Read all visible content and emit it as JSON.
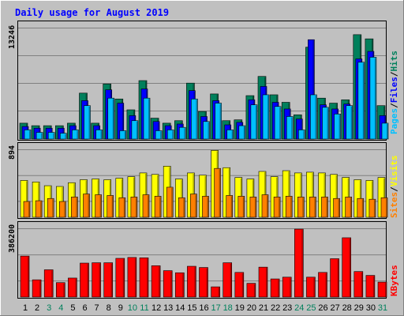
{
  "title": "Daily usage for August 2019",
  "colors": {
    "background": "#C0C0C0",
    "hits": "#00805C",
    "files": "#0000FF",
    "pages": "#00C0FF",
    "visits": "#FFFF00",
    "sites": "#FF8000",
    "kbytes": "#FF0000",
    "day_normal": "#000000",
    "day_weekend": "#00805C"
  },
  "side_labels": {
    "pages": "Pages",
    "files": "Files",
    "hits": "Hits",
    "sites": "Sites",
    "visits": "Visits",
    "kbytes": "KBytes",
    "separator": "/"
  },
  "chart_data": [
    {
      "type": "bar",
      "panel": "hits-files-pages",
      "max_label": "13246",
      "ylim": [
        0,
        13246
      ],
      "categories": [
        "1",
        "2",
        "3",
        "4",
        "5",
        "6",
        "7",
        "8",
        "9",
        "10",
        "11",
        "12",
        "13",
        "14",
        "15",
        "16",
        "17",
        "18",
        "19",
        "20",
        "21",
        "22",
        "23",
        "24",
        "25",
        "26",
        "27",
        "28",
        "29",
        "30",
        "31"
      ],
      "weekend_days": [
        "3",
        "4",
        "10",
        "11",
        "17",
        "18",
        "24",
        "25",
        "31"
      ],
      "series": [
        {
          "name": "Hits",
          "values": [
            1900,
            1600,
            1600,
            1600,
            1900,
            5500,
            1900,
            6600,
            4800,
            3500,
            7000,
            2500,
            1900,
            2200,
            6700,
            3300,
            5400,
            2200,
            2300,
            5200,
            7500,
            5300,
            4400,
            2900,
            11000,
            4900,
            4300,
            4700,
            12500,
            12000,
            4000
          ]
        },
        {
          "name": "Files",
          "values": [
            1500,
            1300,
            1300,
            1300,
            1600,
            4600,
            1600,
            5900,
            4300,
            2800,
            6000,
            2100,
            1600,
            1800,
            5800,
            2700,
            4600,
            1700,
            2000,
            4700,
            6300,
            4400,
            3600,
            2400,
            11900,
            4100,
            3600,
            4200,
            9600,
            10500,
            2800
          ]
        },
        {
          "name": "Pages",
          "values": [
            1100,
            800,
            800,
            700,
            1100,
            4000,
            1100,
            4900,
            1000,
            2200,
            4900,
            1000,
            1100,
            1400,
            4800,
            2100,
            4300,
            1100,
            1600,
            4100,
            5300,
            3900,
            2700,
            1100,
            5300,
            3800,
            3000,
            4000,
            9200,
            9800,
            1900
          ]
        }
      ]
    },
    {
      "type": "bar",
      "panel": "visits-sites",
      "max_label": "894",
      "ylim": [
        0,
        894
      ],
      "categories": [
        "1",
        "2",
        "3",
        "4",
        "5",
        "6",
        "7",
        "8",
        "9",
        "10",
        "11",
        "12",
        "13",
        "14",
        "15",
        "16",
        "17",
        "18",
        "19",
        "20",
        "21",
        "22",
        "23",
        "24",
        "25",
        "26",
        "27",
        "28",
        "29",
        "30",
        "31"
      ],
      "weekend_days": [
        "3",
        "4",
        "10",
        "11",
        "17",
        "18",
        "24",
        "25",
        "31"
      ],
      "series": [
        {
          "name": "Visits",
          "values": [
            490,
            470,
            420,
            410,
            460,
            500,
            510,
            500,
            520,
            540,
            590,
            570,
            680,
            510,
            590,
            560,
            890,
            660,
            530,
            510,
            610,
            540,
            620,
            590,
            600,
            590,
            570,
            530,
            500,
            490,
            530
          ]
        },
        {
          "name": "Sites",
          "values": [
            210,
            220,
            250,
            210,
            270,
            310,
            300,
            290,
            260,
            270,
            300,
            280,
            400,
            260,
            310,
            280,
            650,
            290,
            280,
            270,
            300,
            270,
            280,
            270,
            270,
            270,
            250,
            270,
            250,
            240,
            260
          ]
        }
      ]
    },
    {
      "type": "bar",
      "panel": "kbytes",
      "max_label": "386200",
      "ylim": [
        0,
        386200
      ],
      "categories": [
        "1",
        "2",
        "3",
        "4",
        "5",
        "6",
        "7",
        "8",
        "9",
        "10",
        "11",
        "12",
        "13",
        "14",
        "15",
        "16",
        "17",
        "18",
        "19",
        "20",
        "21",
        "22",
        "23",
        "24",
        "25",
        "26",
        "27",
        "28",
        "29",
        "30",
        "31"
      ],
      "weekend_days": [
        "3",
        "4",
        "10",
        "11",
        "17",
        "18",
        "24",
        "25",
        "31"
      ],
      "series": [
        {
          "name": "KBytes",
          "values": [
            233000,
            98000,
            155000,
            82000,
            108000,
            193000,
            195000,
            195000,
            220000,
            225000,
            223000,
            178000,
            150000,
            138000,
            175000,
            168000,
            58000,
            195000,
            140000,
            78000,
            170000,
            103000,
            113000,
            386000,
            113000,
            140000,
            218000,
            337000,
            145000,
            123000,
            85000
          ]
        }
      ]
    }
  ]
}
